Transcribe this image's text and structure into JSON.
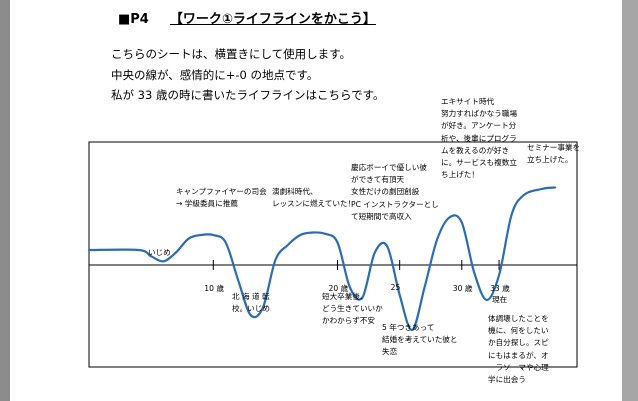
{
  "heading": {
    "section": "■P4",
    "title": "【ワーク①ライフラインをかこう】"
  },
  "intro_lines": [
    "こちらのシートは、横置きにして使用します。",
    "中央の線が、感情的に+-0 の地点です。",
    "私が 33 歳の時に書いたライフラインはこちらです。"
  ],
  "chart_data": {
    "type": "line",
    "title": "",
    "xlabel": "",
    "ylabel": "",
    "x_ticks": [
      {
        "age": 10,
        "label": "10 歳"
      },
      {
        "age": 20,
        "label": "20 歳"
      },
      {
        "age": 25,
        "label": "25"
      },
      {
        "age": 30,
        "label": "30 歳"
      },
      {
        "age": 33,
        "label": "33 歳"
      }
    ],
    "current_age": 33,
    "current_label": "現在",
    "baseline": 0,
    "ylim": [
      -3,
      3
    ],
    "line_color": "#2c6cb5",
    "points": [
      [
        0,
        0.6
      ],
      [
        4,
        0.6
      ],
      [
        5,
        0.35
      ],
      [
        6,
        0.15
      ],
      [
        7,
        0.5
      ],
      [
        8,
        1.05
      ],
      [
        9,
        1.2
      ],
      [
        10,
        1.2
      ],
      [
        11,
        0.9
      ],
      [
        12,
        -0.6
      ],
      [
        13,
        -2.0
      ],
      [
        14,
        -1.7
      ],
      [
        15,
        0.2
      ],
      [
        16,
        0.8
      ],
      [
        17,
        1.2
      ],
      [
        18,
        1.3
      ],
      [
        19,
        1.25
      ],
      [
        20,
        0.9
      ],
      [
        21,
        -0.9
      ],
      [
        22,
        -1.3
      ],
      [
        23,
        0.5
      ],
      [
        24,
        0.75
      ],
      [
        25,
        -1.2
      ],
      [
        26,
        -2.6
      ],
      [
        27,
        -0.9
      ],
      [
        28,
        1.0
      ],
      [
        29,
        1.9
      ],
      [
        30,
        1.7
      ],
      [
        31,
        -0.3
      ],
      [
        32,
        -1.4
      ],
      [
        33,
        -0.4
      ],
      [
        34,
        2.0
      ],
      [
        35,
        2.8
      ],
      [
        36.5,
        3.05
      ],
      [
        37.5,
        3.1
      ]
    ],
    "annotations": [
      {
        "age": 5,
        "lines": [
          "いじめ"
        ]
      },
      {
        "age": 12,
        "lines": [
          "キャンプファイヤーの司会",
          "→ 学級委員に推薦"
        ]
      },
      {
        "age": 14,
        "lines": [
          "北 海 道 転",
          "校。いじめ"
        ]
      },
      {
        "age": 17,
        "lines": [
          "演劇科時代、",
          "レッスンに燃えていた！"
        ]
      },
      {
        "age": 21,
        "lines": [
          "短大卒業後、",
          "どう生きていいか",
          "かわからず不安"
        ]
      },
      {
        "age": 24,
        "lines": [
          "慶応ボーイで優しい彼",
          "ができて有頂天",
          "女性だけの劇団創設",
          "PC インストラクターとし",
          "て短期間で高収入"
        ]
      },
      {
        "age": 26,
        "lines": [
          "5 年つきあって",
          "結婚を考えていた彼と",
          "失恋"
        ]
      },
      {
        "age": 30,
        "lines": [
          "エキサイト時代",
          "努力すればかなう職場",
          "が好き。アンケート分",
          "析や、後輩にプログラ",
          "ムを教えるのが好き",
          "に。サービスも複数立",
          "ち上げた！"
        ]
      },
      {
        "age": 32,
        "lines": [
          "体調壊したことを",
          "機に、何をしたい",
          "か自分探し。スピ",
          "にもはまるが、オ",
          "ーラソーマや心理",
          "学に出会う"
        ]
      },
      {
        "age": 37,
        "lines": [
          "セミナー事業を",
          "立ち上げた。"
        ]
      }
    ]
  }
}
